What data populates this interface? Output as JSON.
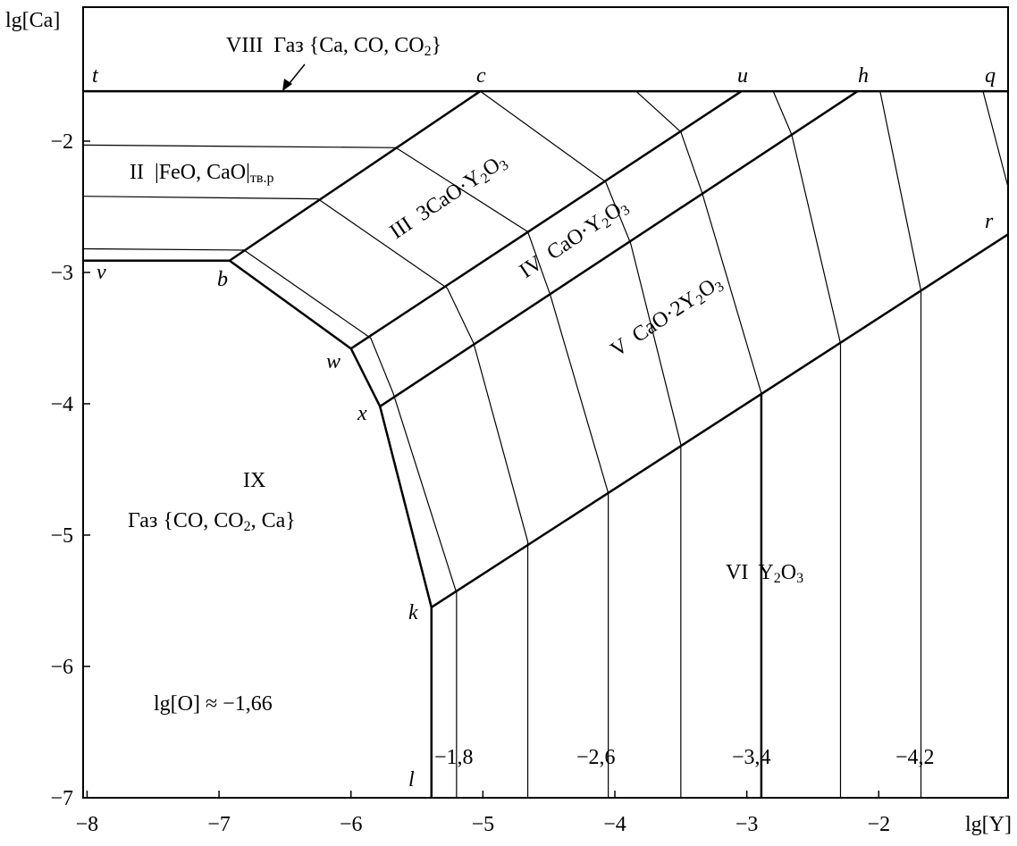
{
  "chart_data": {
    "type": "phase-diagram",
    "x_label": "lg[Y]",
    "y_label": "lg[Ca]",
    "xlim": [
      -8.03,
      -1.02
    ],
    "ylim": [
      -7,
      -0.98
    ],
    "xticks": [
      {
        "value": -8,
        "label": "−8"
      },
      {
        "value": -7,
        "label": "−7"
      },
      {
        "value": -6,
        "label": "−6"
      },
      {
        "value": -5,
        "label": "−5"
      },
      {
        "value": -4,
        "label": "−4"
      },
      {
        "value": -3,
        "label": "−3"
      },
      {
        "value": -2,
        "label": "−2"
      }
    ],
    "yticks": [
      {
        "value": -7,
        "label": "−7"
      },
      {
        "value": -6,
        "label": "−6"
      },
      {
        "value": -5,
        "label": "−5"
      },
      {
        "value": -4,
        "label": "−4"
      },
      {
        "value": -3,
        "label": "−3"
      },
      {
        "value": -2,
        "label": "−2"
      }
    ],
    "series": [
      {
        "color": "#000",
        "width": 2.5,
        "x": [
          -8.03,
          -1.02
        ],
        "values": [
          -1.62,
          -1.62
        ]
      },
      {
        "color": "#000",
        "width": 2.5,
        "x": [
          -8.03,
          -6.92,
          -6.0,
          -5.78,
          -5.39,
          -5.39
        ],
        "values": [
          -2.91,
          -2.91,
          -3.58,
          -4.02,
          -5.55,
          -7
        ]
      },
      {
        "color": "#000",
        "width": 2.5,
        "x": [
          -6.92,
          -5.02
        ],
        "values": [
          -2.91,
          -1.62
        ]
      },
      {
        "color": "#000",
        "width": 2.5,
        "x": [
          -6.0,
          -3.04
        ],
        "values": [
          -3.58,
          -1.62
        ]
      },
      {
        "color": "#000",
        "width": 2.5,
        "x": [
          -5.78,
          -2.16
        ],
        "values": [
          -4.02,
          -1.62
        ]
      },
      {
        "color": "#000",
        "width": 2.5,
        "x": [
          -5.39,
          -1.02
        ],
        "values": [
          -5.55,
          -2.71
        ]
      },
      {
        "color": "#000",
        "width": 1.2,
        "x": [
          -8.03,
          -6.81,
          -5.85,
          -5.68,
          -5.2,
          -5.2
        ],
        "values": [
          -2.82,
          -2.83,
          -3.5,
          -3.92,
          -5.44,
          -7
        ]
      },
      {
        "color": "#000",
        "width": 1.2,
        "x": [
          -8.03,
          -6.25,
          -5.27,
          -5.07,
          -4.66,
          -4.66
        ],
        "values": [
          -2.42,
          -2.44,
          -3.12,
          -3.54,
          -5.05,
          -7
        ]
      },
      {
        "color": "#000",
        "width": 1.2,
        "x": [
          -8.03,
          -5.66,
          -4.66,
          -4.49,
          -4.05,
          -4.05
        ],
        "values": [
          -2.03,
          -2.05,
          -2.69,
          -3.17,
          -4.68,
          -7
        ]
      },
      {
        "color": "#000",
        "width": 1.2,
        "x": [
          -5.02,
          -4.07,
          -3.88,
          -3.5,
          -3.5
        ],
        "values": [
          -1.62,
          -2.31,
          -2.78,
          -4.31,
          -7
        ]
      },
      {
        "color": "#000",
        "width": 1.2,
        "x": [
          -3.84,
          -3.5,
          -3.34,
          -2.89
        ],
        "values": [
          -1.62,
          -1.93,
          -2.39,
          -3.92
        ]
      },
      {
        "color": "#000",
        "width": 2.5,
        "x": [
          -2.89,
          -2.89
        ],
        "values": [
          -3.92,
          -7
        ]
      },
      {
        "color": "#000",
        "width": 1.2,
        "x": [
          -2.8,
          -2.66,
          -2.29,
          -2.29
        ],
        "values": [
          -1.62,
          -1.95,
          -3.54,
          -7
        ]
      },
      {
        "color": "#000",
        "width": 1.2,
        "x": [
          -1.99,
          -1.68,
          -1.68
        ],
        "values": [
          -1.62,
          -3.14,
          -7
        ]
      },
      {
        "color": "#000",
        "width": 1.2,
        "x": [
          -1.21,
          -1.02
        ],
        "values": [
          -1.62,
          -2.35
        ]
      }
    ],
    "annotations": [
      {
        "segments": [
          {
            "text": "VIII  Газ {Ca, CO, CO"
          },
          {
            "text": "2",
            "sub": true
          },
          {
            "text": "}"
          }
        ]
      },
      {
        "segments": [
          {
            "text": "II  |FeO, CaO|"
          },
          {
            "text": "тв.р",
            "sub": true
          }
        ]
      },
      {
        "segments": [
          {
            "text": "III  3CaO·Y"
          },
          {
            "text": "2",
            "sub": true
          },
          {
            "text": "O"
          },
          {
            "text": "3",
            "sub": true
          }
        ]
      },
      {
        "segments": [
          {
            "text": "IV  CaO·Y"
          },
          {
            "text": "2",
            "sub": true
          },
          {
            "text": "O"
          },
          {
            "text": "3",
            "sub": true
          }
        ]
      },
      {
        "segments": [
          {
            "text": "V  CaO·2Y"
          },
          {
            "text": "2",
            "sub": true
          },
          {
            "text": "O"
          },
          {
            "text": "3",
            "sub": true
          }
        ]
      },
      {
        "segments": [
          {
            "text": "IX"
          }
        ]
      },
      {
        "segments": [
          {
            "text": "Газ {CO, CO"
          },
          {
            "text": "2",
            "sub": true
          },
          {
            "text": ", Ca}"
          }
        ]
      },
      {
        "segments": [
          {
            "text": "VI  Y"
          },
          {
            "text": "2",
            "sub": true
          },
          {
            "text": "O"
          },
          {
            "text": "3",
            "sub": true
          }
        ]
      },
      {
        "segments": [
          {
            "text": "lg[O] ≈ −1,66"
          }
        ]
      }
    ],
    "point_labels": [
      "t",
      "c",
      "u",
      "h",
      "q",
      "v",
      "b",
      "w",
      "x",
      "k",
      "l",
      "r"
    ],
    "isoline_labels": [
      "−1,8",
      "−2,6",
      "−3,4",
      "−4,2"
    ]
  }
}
